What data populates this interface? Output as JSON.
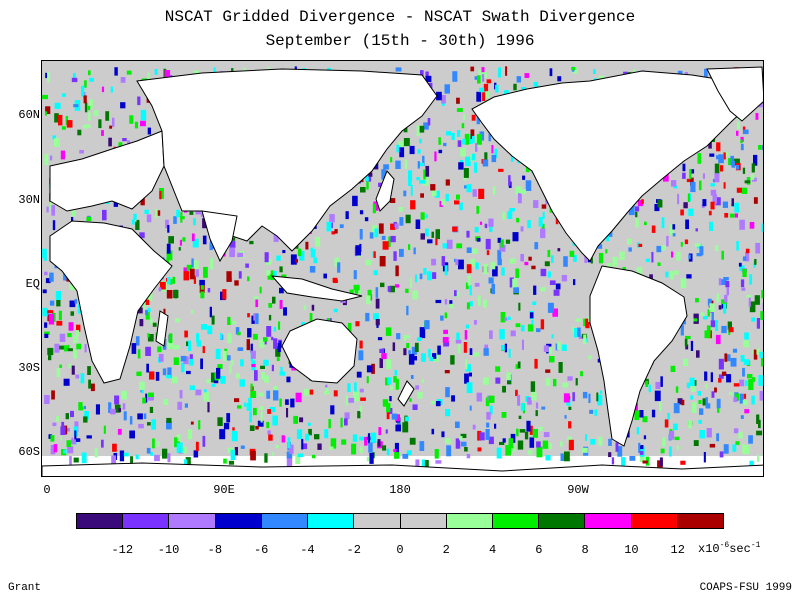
{
  "title": "NSCAT Gridded Divergence - NSCAT Swath Divergence",
  "subtitle": "September (15th - 30th) 1996",
  "lat_labels": [
    "60N",
    "30N",
    "EQ",
    "30S",
    "60S"
  ],
  "lon_labels": [
    "0",
    "90E",
    "180",
    "90W"
  ],
  "colorbar": {
    "colors": [
      "#3b0a7a",
      "#7a33ff",
      "#b07aff",
      "#0000cc",
      "#3388ff",
      "#00ffff",
      "#cccccc",
      "#cccccc",
      "#99ff99",
      "#00ee00",
      "#007700",
      "#ff00ff",
      "#ff0000",
      "#aa0000"
    ],
    "labels": [
      "-12",
      "-10",
      "-8",
      "-6",
      "-4",
      "-2",
      "0",
      "2",
      "4",
      "6",
      "8",
      "10",
      "12"
    ],
    "units_prefix": "x10",
    "units_exp": "-6",
    "units_suffix": "sec",
    "units_exp2": "-1"
  },
  "credit_left": "Grant",
  "credit_right": "COAPS-FSU 1999"
}
